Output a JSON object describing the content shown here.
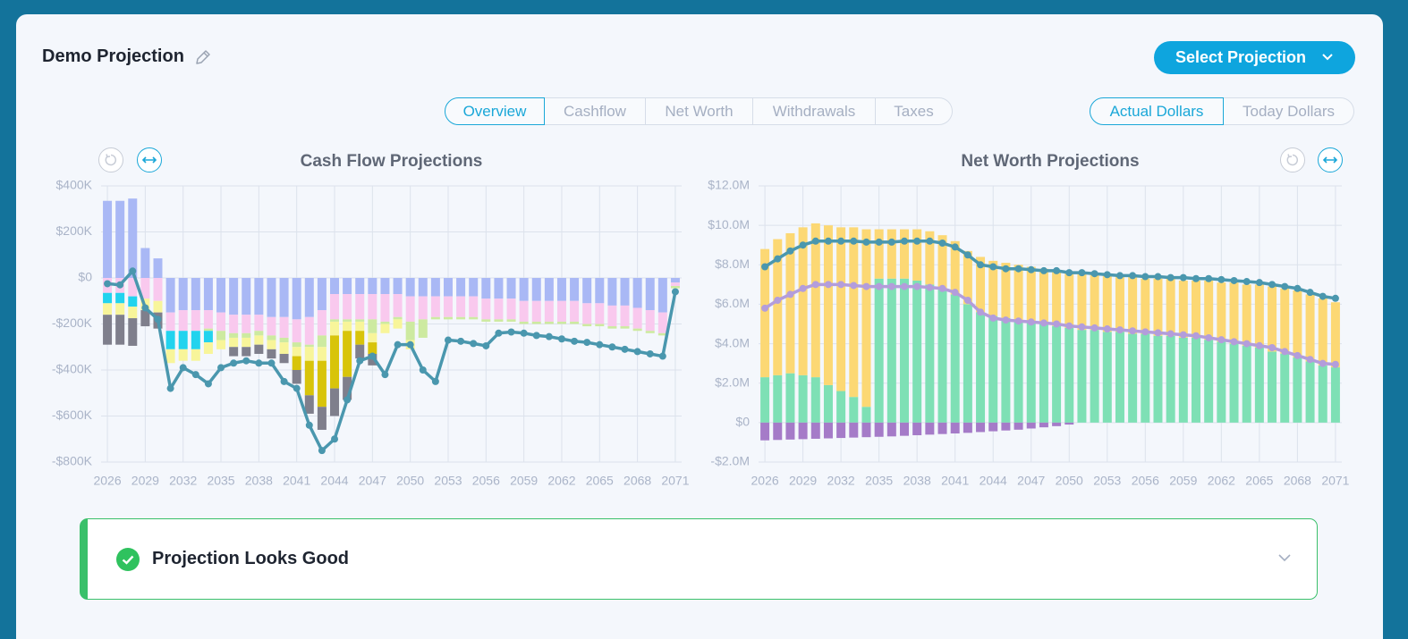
{
  "header": {
    "title": "Demo Projection",
    "button": "Select Projection"
  },
  "tabs": [
    "Overview",
    "Cashflow",
    "Net Worth",
    "Withdrawals",
    "Taxes"
  ],
  "dollar_toggle": [
    "Actual Dollars",
    "Today Dollars"
  ],
  "status": {
    "message": "Projection Looks Good"
  },
  "chart_data": [
    {
      "type": "bar",
      "stacked": true,
      "title": "Cash Flow Projections",
      "grid": true,
      "x": [
        2026,
        2027,
        2028,
        2029,
        2030,
        2031,
        2032,
        2033,
        2034,
        2035,
        2036,
        2037,
        2038,
        2039,
        2040,
        2041,
        2042,
        2043,
        2044,
        2045,
        2046,
        2047,
        2048,
        2049,
        2050,
        2051,
        2052,
        2053,
        2054,
        2055,
        2056,
        2057,
        2058,
        2059,
        2060,
        2061,
        2062,
        2063,
        2064,
        2065,
        2066,
        2067,
        2068,
        2069,
        2070,
        2071
      ],
      "xlim": [
        2025.5,
        2071.5
      ],
      "xticks": [
        2026,
        2029,
        2032,
        2035,
        2038,
        2041,
        2044,
        2047,
        2050,
        2053,
        2056,
        2059,
        2062,
        2065,
        2068,
        2071
      ],
      "ylim": [
        -800000,
        400000
      ],
      "yticks": [
        {
          "value": -800000,
          "label": "-$800K"
        },
        {
          "value": -600000,
          "label": "-$600K"
        },
        {
          "value": -400000,
          "label": "-$400K"
        },
        {
          "value": -200000,
          "label": "-$200K"
        },
        {
          "value": 0,
          "label": "$0"
        },
        {
          "value": 200000,
          "label": "$200K"
        },
        {
          "value": 400000,
          "label": "$400K"
        }
      ],
      "series": [
        {
          "color": "#a9b8f5",
          "values": [
            335000,
            335000,
            345000,
            130000,
            85000,
            -150000,
            -140000,
            -140000,
            -140000,
            -150000,
            -160000,
            -160000,
            -160000,
            -170000,
            -170000,
            -180000,
            -170000,
            -140000,
            -70000,
            -70000,
            -70000,
            -70000,
            -70000,
            -70000,
            -80000,
            -80000,
            -80000,
            -80000,
            -80000,
            -80000,
            -90000,
            -90000,
            -90000,
            -100000,
            -100000,
            -100000,
            -100000,
            -100000,
            -110000,
            -110000,
            -120000,
            -120000,
            -130000,
            -140000,
            -150000,
            -20000
          ]
        },
        {
          "color": "#f9c9ee",
          "values": [
            -65000,
            -65000,
            -80000,
            -90000,
            -100000,
            -80000,
            -90000,
            -90000,
            -80000,
            -80000,
            -80000,
            -80000,
            -70000,
            -80000,
            -90000,
            -100000,
            -120000,
            -110000,
            -110000,
            -110000,
            -110000,
            -110000,
            -120000,
            -100000,
            -110000,
            -100000,
            -90000,
            -90000,
            -90000,
            -90000,
            -90000,
            -90000,
            -90000,
            -90000,
            -90000,
            -90000,
            -90000,
            -90000,
            -90000,
            -90000,
            -90000,
            -90000,
            -90000,
            -90000,
            -90000,
            -15000
          ]
        },
        {
          "color": "#cdeaa0",
          "values": [
            0,
            0,
            0,
            0,
            0,
            0,
            0,
            0,
            -10000,
            -40000,
            -20000,
            -20000,
            -20000,
            -20000,
            -20000,
            -20000,
            -10000,
            -50000,
            -10000,
            -10000,
            -10000,
            -60000,
            -10000,
            -10000,
            -80000,
            -80000,
            -10000,
            -10000,
            -10000,
            -10000,
            -10000,
            -10000,
            -10000,
            -10000,
            -10000,
            -10000,
            -10000,
            -10000,
            -10000,
            -10000,
            -10000,
            -10000,
            -10000,
            -10000,
            -10000,
            -10000
          ]
        },
        {
          "color": "#22d3ee",
          "values": [
            -45000,
            -45000,
            -45000,
            0,
            0,
            -80000,
            -80000,
            -80000,
            -50000,
            0,
            0,
            0,
            0,
            0,
            0,
            0,
            0,
            0,
            0,
            0,
            0,
            0,
            0,
            0,
            0,
            0,
            0,
            0,
            0,
            0,
            0,
            0,
            0,
            0,
            0,
            0,
            0,
            0,
            0,
            0,
            0,
            0,
            0,
            0,
            0,
            0
          ]
        },
        {
          "color": "#f8f59a",
          "values": [
            -50000,
            -50000,
            -50000,
            -50000,
            -50000,
            -60000,
            -50000,
            -50000,
            -50000,
            -40000,
            -40000,
            -40000,
            -40000,
            -40000,
            -50000,
            -40000,
            -60000,
            -60000,
            -60000,
            -40000,
            -40000,
            -40000,
            -40000,
            -40000,
            -40000,
            0,
            0,
            0,
            0,
            0,
            0,
            0,
            0,
            0,
            0,
            0,
            0,
            0,
            0,
            0,
            0,
            0,
            0,
            0,
            0,
            0
          ]
        },
        {
          "color": "#d8c40a",
          "values": [
            0,
            0,
            0,
            0,
            0,
            0,
            0,
            0,
            0,
            0,
            0,
            0,
            0,
            0,
            0,
            -60000,
            -150000,
            -200000,
            -230000,
            -200000,
            -60000,
            -50000,
            0,
            0,
            0,
            0,
            0,
            0,
            0,
            0,
            0,
            0,
            0,
            0,
            0,
            0,
            0,
            0,
            0,
            0,
            0,
            0,
            0,
            0,
            0,
            0
          ]
        },
        {
          "color": "#7f7f8c",
          "values": [
            -130000,
            -130000,
            -120000,
            -70000,
            -70000,
            0,
            0,
            0,
            0,
            0,
            -40000,
            -40000,
            -40000,
            -40000,
            -40000,
            -60000,
            -80000,
            -100000,
            -120000,
            -100000,
            -60000,
            -50000,
            0,
            0,
            0,
            0,
            0,
            0,
            0,
            0,
            0,
            0,
            0,
            0,
            0,
            0,
            0,
            0,
            0,
            0,
            0,
            0,
            0,
            0,
            0,
            0
          ]
        },
        {
          "type": "line",
          "color": "#4a97ae",
          "values": [
            -25000,
            -30000,
            30000,
            -130000,
            -180000,
            -480000,
            -390000,
            -420000,
            -460000,
            -390000,
            -370000,
            -360000,
            -370000,
            -370000,
            -450000,
            -480000,
            -640000,
            -750000,
            -700000,
            -530000,
            -360000,
            -340000,
            -420000,
            -290000,
            -290000,
            -400000,
            -450000,
            -270000,
            -275000,
            -285000,
            -295000,
            -240000,
            -235000,
            -240000,
            -250000,
            -255000,
            -265000,
            -275000,
            -280000,
            -290000,
            -300000,
            -310000,
            -320000,
            -330000,
            -340000,
            -60000
          ]
        }
      ]
    },
    {
      "type": "bar",
      "stacked": true,
      "title": "Net Worth Projections",
      "grid": true,
      "x": [
        2026,
        2027,
        2028,
        2029,
        2030,
        2031,
        2032,
        2033,
        2034,
        2035,
        2036,
        2037,
        2038,
        2039,
        2040,
        2041,
        2042,
        2043,
        2044,
        2045,
        2046,
        2047,
        2048,
        2049,
        2050,
        2051,
        2052,
        2053,
        2054,
        2055,
        2056,
        2057,
        2058,
        2059,
        2060,
        2061,
        2062,
        2063,
        2064,
        2065,
        2066,
        2067,
        2068,
        2069,
        2070,
        2071
      ],
      "xlim": [
        2025.5,
        2071.5
      ],
      "xticks": [
        2026,
        2029,
        2032,
        2035,
        2038,
        2041,
        2044,
        2047,
        2050,
        2053,
        2056,
        2059,
        2062,
        2065,
        2068,
        2071
      ],
      "ylim": [
        -2000000,
        12000000
      ],
      "yticks": [
        {
          "value": -2000000,
          "label": "-$2.0M"
        },
        {
          "value": 0,
          "label": "$0"
        },
        {
          "value": 2000000,
          "label": "$2.0M"
        },
        {
          "value": 4000000,
          "label": "$4.0M"
        },
        {
          "value": 6000000,
          "label": "$6.0M"
        },
        {
          "value": 8000000,
          "label": "$8.0M"
        },
        {
          "value": 10000000,
          "label": "$10.0M"
        },
        {
          "value": 12000000,
          "label": "$12.0M"
        }
      ],
      "series": [
        {
          "color": "#7ee0b5",
          "values": [
            2300000,
            2400000,
            2500000,
            2400000,
            2300000,
            1900000,
            1600000,
            1300000,
            800000,
            7300000,
            7300000,
            7300000,
            7200000,
            7000000,
            6800000,
            6500000,
            6000000,
            5600000,
            5400000,
            5300000,
            5200000,
            5100000,
            5000000,
            4900000,
            4800000,
            4700000,
            4700000,
            4600000,
            4600000,
            4500000,
            4500000,
            4400000,
            4400000,
            4300000,
            4300000,
            4200000,
            4100000,
            4000000,
            3900000,
            3800000,
            3600000,
            3500000,
            3300000,
            3100000,
            2900000,
            2800000
          ]
        },
        {
          "color": "#fcd874",
          "values": [
            6500000,
            6900000,
            7100000,
            7500000,
            7800000,
            8100000,
            8300000,
            8600000,
            9000000,
            2500000,
            2500000,
            2500000,
            2600000,
            2700000,
            2700000,
            2700000,
            2700000,
            2800000,
            2800000,
            2800000,
            2800000,
            2800000,
            2800000,
            2800000,
            2800000,
            2900000,
            2800000,
            2900000,
            2800000,
            2900000,
            2800000,
            2900000,
            2900000,
            2900000,
            2900000,
            3000000,
            3000000,
            3100000,
            3100000,
            3200000,
            3300000,
            3300000,
            3400000,
            3400000,
            3400000,
            3300000
          ]
        },
        {
          "color": "#a57bc8",
          "values": [
            -900000,
            -880000,
            -860000,
            -840000,
            -820000,
            -800000,
            -780000,
            -760000,
            -740000,
            -720000,
            -700000,
            -670000,
            -640000,
            -610000,
            -580000,
            -550000,
            -520000,
            -480000,
            -440000,
            -400000,
            -360000,
            -300000,
            -240000,
            -180000,
            -100000,
            0,
            0,
            0,
            0,
            0,
            0,
            0,
            0,
            0,
            0,
            0,
            0,
            0,
            0,
            0,
            0,
            0,
            0,
            0,
            0,
            0
          ]
        },
        {
          "type": "line",
          "color": "#4a97ae",
          "values": [
            7900000,
            8300000,
            8700000,
            9000000,
            9200000,
            9200000,
            9200000,
            9200000,
            9150000,
            9150000,
            9150000,
            9200000,
            9200000,
            9200000,
            9100000,
            8900000,
            8500000,
            8000000,
            7900000,
            7800000,
            7800000,
            7750000,
            7700000,
            7700000,
            7600000,
            7600000,
            7550000,
            7500000,
            7450000,
            7450000,
            7400000,
            7400000,
            7350000,
            7350000,
            7300000,
            7300000,
            7250000,
            7200000,
            7150000,
            7100000,
            7000000,
            6900000,
            6800000,
            6600000,
            6400000,
            6300000
          ]
        },
        {
          "type": "line",
          "color": "#b39ddb",
          "values": [
            5800000,
            6200000,
            6500000,
            6800000,
            7000000,
            7000000,
            7000000,
            6950000,
            6900000,
            6900000,
            6900000,
            6900000,
            6900000,
            6850000,
            6800000,
            6600000,
            6200000,
            5600000,
            5300000,
            5200000,
            5150000,
            5100000,
            5050000,
            5000000,
            4900000,
            4850000,
            4800000,
            4750000,
            4700000,
            4650000,
            4600000,
            4550000,
            4500000,
            4450000,
            4400000,
            4300000,
            4200000,
            4100000,
            4000000,
            3900000,
            3800000,
            3600000,
            3400000,
            3200000,
            3000000,
            2950000
          ]
        }
      ]
    }
  ]
}
